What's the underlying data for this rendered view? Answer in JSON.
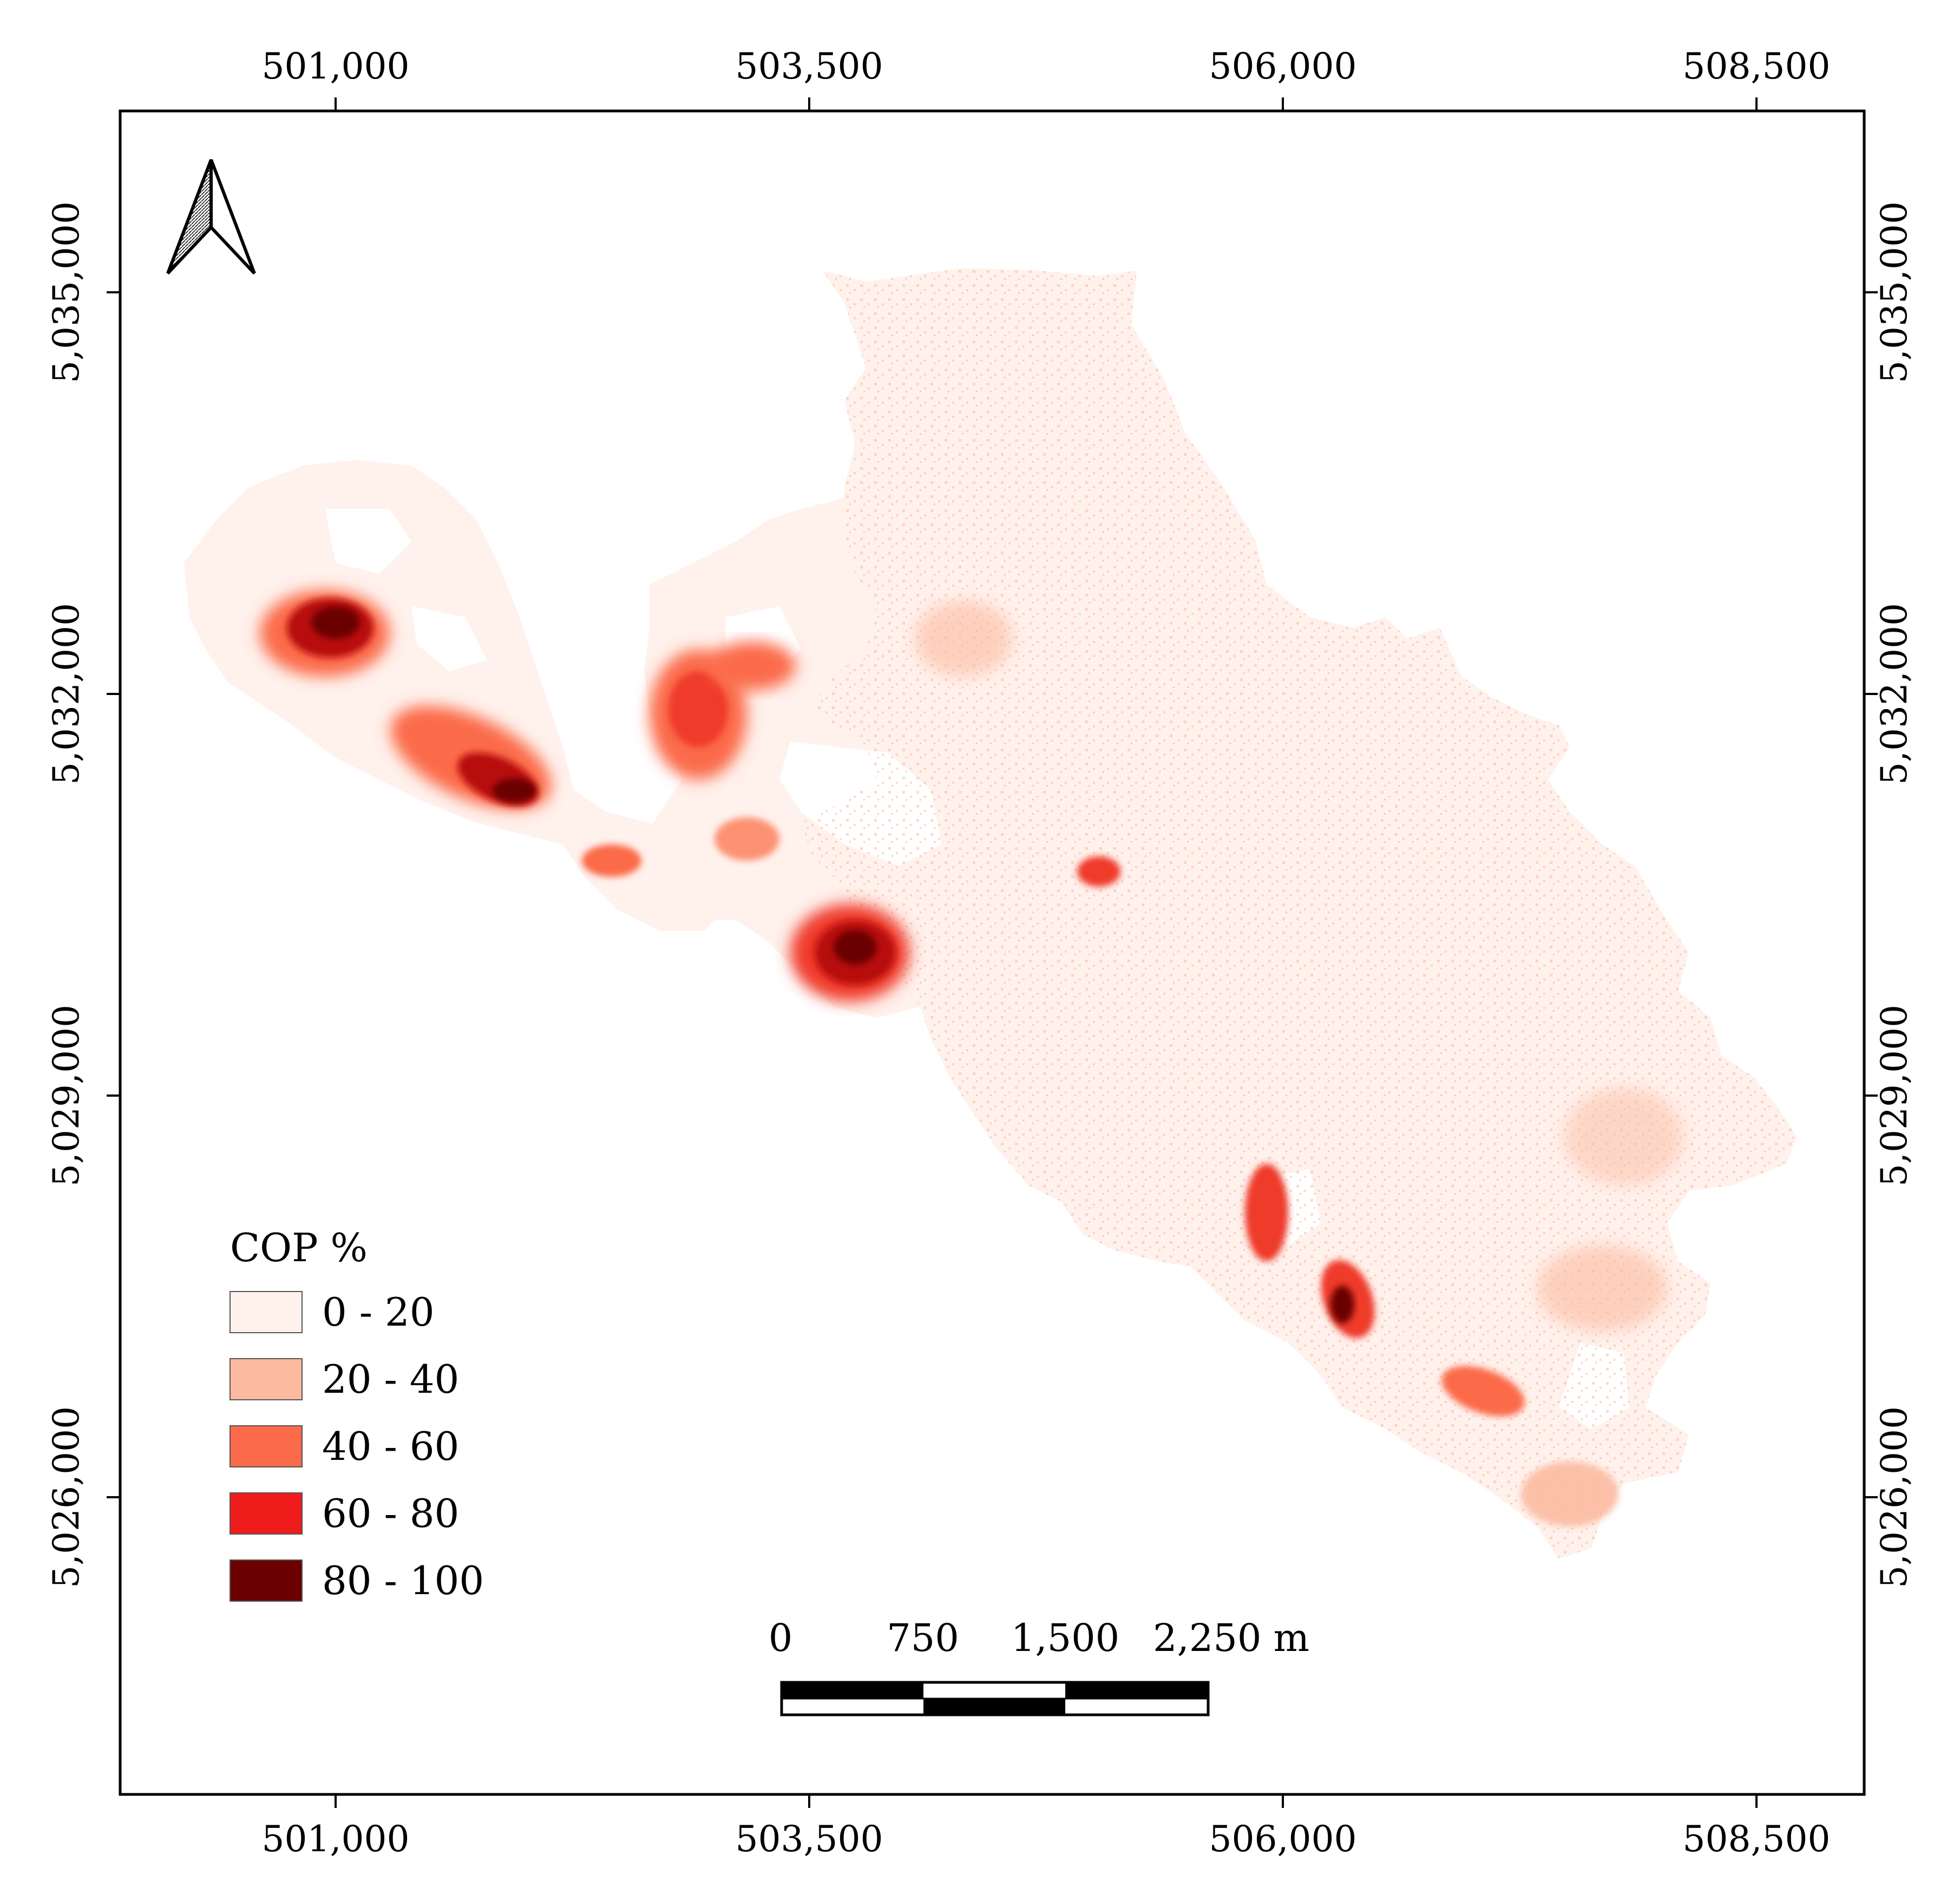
{
  "map": {
    "axis_top": [
      "501,000",
      "503,500",
      "506,000",
      "508,500"
    ],
    "axis_bottom": [
      "501,000",
      "503,500",
      "506,000",
      "508,500"
    ],
    "axis_left": [
      "5,035,000",
      "5,032,000",
      "5,029,000",
      "5,026,000"
    ],
    "axis_right": [
      "5,035,000",
      "5,032,000",
      "5,029,000",
      "5,026,000"
    ]
  },
  "legend": {
    "title": "COP %",
    "classes": [
      {
        "label": "0 - 20",
        "color": "#fff1ec"
      },
      {
        "label": "20 - 40",
        "color": "#fcbba1"
      },
      {
        "label": "40 - 60",
        "color": "#fb6a4a"
      },
      {
        "label": "60 - 80",
        "color": "#ef1c1c"
      },
      {
        "label": "80 - 100",
        "color": "#6b0000"
      }
    ]
  },
  "scale_bar": {
    "labels": [
      "0",
      "750",
      "1,500",
      "2,250 m"
    ]
  },
  "north_arrow": {
    "icon": "north-arrow-icon"
  }
}
